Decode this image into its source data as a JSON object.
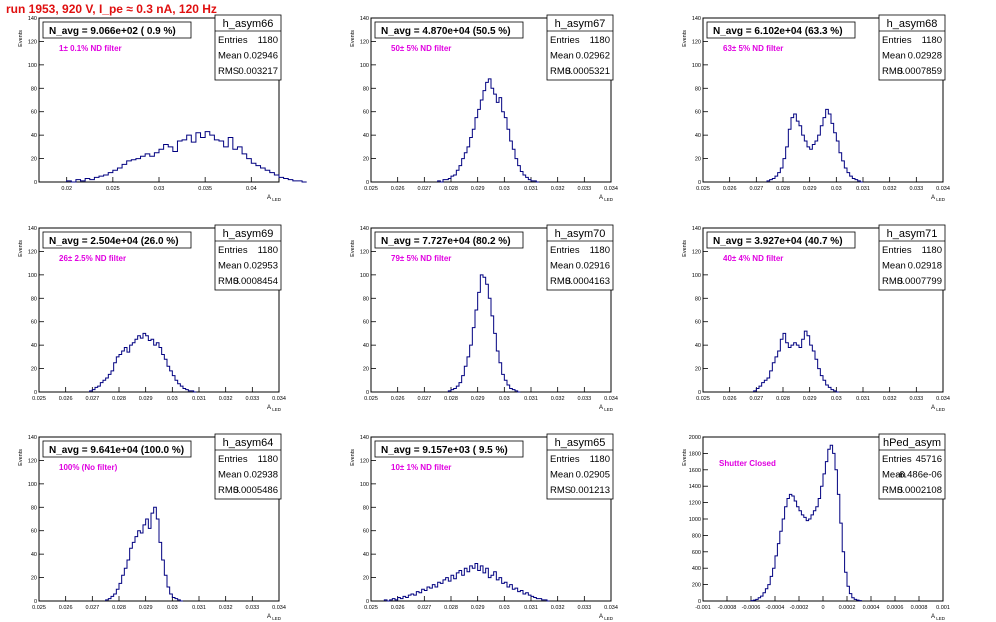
{
  "page": {
    "title": "run 1953,   920 V, I_pe ≈ 0.3 nA, 120 Hz"
  },
  "chart_data": [
    {
      "type": "histogram",
      "name": "h_asym66",
      "label": "N_avg = 9.066e+02 ( 0.9 %)",
      "filter": "1± 0.1% ND filter",
      "stats": {
        "entries": "1180",
        "mean": "0.02946",
        "rms": "0.003217"
      },
      "xlim": [
        0.017,
        0.043
      ],
      "ylim": [
        0,
        140
      ],
      "xticks": [
        0.02,
        0.025,
        0.03,
        0.035,
        0.04
      ],
      "xtick_labels": [
        "0.02",
        "0.025",
        "0.03",
        "0.035",
        "0.04"
      ],
      "yticks": [
        0,
        20,
        40,
        60,
        80,
        100,
        120,
        140
      ],
      "xlabel": "A",
      "xlabel_sub": "LED",
      "ylabel": "Events",
      "bins": {
        "x0": 0.02,
        "width": 0.0005,
        "values": [
          1,
          0,
          2,
          1,
          3,
          2,
          4,
          5,
          6,
          8,
          10,
          12,
          15,
          18,
          19,
          20,
          22,
          24,
          22,
          25,
          28,
          32,
          30,
          26,
          35,
          36,
          40,
          34,
          42,
          38,
          43,
          40,
          36,
          35,
          30,
          38,
          28,
          30,
          24,
          20,
          16,
          14,
          12,
          10,
          8,
          6,
          4,
          3,
          2,
          1,
          1,
          0
        ]
      }
    },
    {
      "type": "histogram",
      "name": "h_asym67",
      "label": "N_avg = 4.870e+04 (50.5 %)",
      "filter": "50± 5% ND filter",
      "stats": {
        "entries": "1180",
        "mean": "0.02962",
        "rms": "0.0005321"
      },
      "xlim": [
        0.025,
        0.034
      ],
      "ylim": [
        0,
        140
      ],
      "xticks": [
        0.025,
        0.026,
        0.027,
        0.028,
        0.029,
        0.03,
        0.031,
        0.032,
        0.033,
        0.034
      ],
      "xtick_labels": [
        "0.025",
        "0.026",
        "0.027",
        "0.028",
        "0.029",
        "0.03",
        "0.031",
        "0.032",
        "0.033",
        "0.034"
      ],
      "yticks": [
        0,
        20,
        40,
        60,
        80,
        100,
        120,
        140
      ],
      "xlabel": "A",
      "xlabel_sub": "LED",
      "ylabel": "Events",
      "bins": {
        "x0": 0.0275,
        "width": 0.0001,
        "values": [
          1,
          0,
          2,
          2,
          3,
          5,
          6,
          10,
          14,
          20,
          25,
          30,
          38,
          45,
          55,
          62,
          70,
          78,
          85,
          88,
          80,
          75,
          68,
          72,
          60,
          55,
          45,
          35,
          28,
          20,
          14,
          9,
          6,
          4,
          2,
          1,
          1,
          0
        ]
      }
    },
    {
      "type": "histogram",
      "name": "h_asym68",
      "label": "N_avg = 6.102e+04 (63.3 %)",
      "filter": "63± 5% ND filter",
      "stats": {
        "entries": "1180",
        "mean": "0.02928",
        "rms": "0.0007859"
      },
      "xlim": [
        0.025,
        0.034
      ],
      "ylim": [
        0,
        140
      ],
      "xticks": [
        0.025,
        0.026,
        0.027,
        0.028,
        0.029,
        0.03,
        0.031,
        0.032,
        0.033,
        0.034
      ],
      "xtick_labels": [
        "0.025",
        "0.026",
        "0.027",
        "0.028",
        "0.029",
        "0.03",
        "0.031",
        "0.032",
        "0.033",
        "0.034"
      ],
      "yticks": [
        0,
        20,
        40,
        60,
        80,
        100,
        120,
        140
      ],
      "xlabel": "A",
      "xlabel_sub": "LED",
      "ylabel": "Events",
      "bins": {
        "x0": 0.0274,
        "width": 0.0001,
        "values": [
          1,
          2,
          3,
          5,
          8,
          12,
          20,
          30,
          45,
          55,
          58,
          52,
          48,
          40,
          35,
          30,
          28,
          32,
          35,
          40,
          48,
          55,
          62,
          58,
          50,
          42,
          35,
          25,
          18,
          12,
          8,
          5,
          3,
          2,
          1,
          0
        ]
      }
    },
    {
      "type": "histogram",
      "name": "h_asym69",
      "label": "N_avg = 2.504e+04 (26.0 %)",
      "filter": "26± 2.5% ND filter",
      "stats": {
        "entries": "1180",
        "mean": "0.02953",
        "rms": "0.0008454"
      },
      "xlim": [
        0.025,
        0.034
      ],
      "ylim": [
        0,
        140
      ],
      "xticks": [
        0.025,
        0.026,
        0.027,
        0.028,
        0.029,
        0.03,
        0.031,
        0.032,
        0.033,
        0.034
      ],
      "xtick_labels": [
        "0.025",
        "0.026",
        "0.027",
        "0.028",
        "0.029",
        "0.03",
        "0.031",
        "0.032",
        "0.033",
        "0.034"
      ],
      "yticks": [
        0,
        20,
        40,
        60,
        80,
        100,
        120,
        140
      ],
      "xlabel": "A",
      "xlabel_sub": "LED",
      "ylabel": "Events",
      "bins": {
        "x0": 0.0269,
        "width": 0.0001,
        "values": [
          1,
          2,
          4,
          5,
          8,
          10,
          12,
          15,
          18,
          25,
          30,
          32,
          35,
          38,
          34,
          40,
          42,
          45,
          48,
          46,
          50,
          48,
          44,
          45,
          40,
          42,
          38,
          32,
          28,
          22,
          18,
          14,
          10,
          7,
          5,
          3,
          2,
          1,
          1,
          0
        ]
      }
    },
    {
      "type": "histogram",
      "name": "h_asym70",
      "label": "N_avg = 7.727e+04 (80.2 %)",
      "filter": "79± 5% ND filter",
      "stats": {
        "entries": "1180",
        "mean": "0.02916",
        "rms": "0.0004163"
      },
      "xlim": [
        0.025,
        0.034
      ],
      "ylim": [
        0,
        140
      ],
      "xticks": [
        0.025,
        0.026,
        0.027,
        0.028,
        0.029,
        0.03,
        0.031,
        0.032,
        0.033,
        0.034
      ],
      "xtick_labels": [
        "0.025",
        "0.026",
        "0.027",
        "0.028",
        "0.029",
        "0.03",
        "0.031",
        "0.032",
        "0.033",
        "0.034"
      ],
      "yticks": [
        0,
        20,
        40,
        60,
        80,
        100,
        120,
        140
      ],
      "xlabel": "A",
      "xlabel_sub": "LED",
      "ylabel": "Events",
      "bins": {
        "x0": 0.0279,
        "width": 0.0001,
        "values": [
          1,
          2,
          3,
          5,
          8,
          14,
          22,
          30,
          40,
          55,
          70,
          85,
          100,
          98,
          92,
          80,
          65,
          50,
          35,
          25,
          15,
          10,
          6,
          3,
          2,
          1,
          0
        ]
      }
    },
    {
      "type": "histogram",
      "name": "h_asym71",
      "label": "N_avg = 3.927e+04 (40.7 %)",
      "filter": "40± 4% ND filter",
      "stats": {
        "entries": "1180",
        "mean": "0.02918",
        "rms": "0.0007799"
      },
      "xlim": [
        0.025,
        0.034
      ],
      "ylim": [
        0,
        140
      ],
      "xticks": [
        0.025,
        0.026,
        0.027,
        0.028,
        0.029,
        0.03,
        0.031,
        0.032,
        0.033,
        0.034
      ],
      "xtick_labels": [
        "0.025",
        "0.026",
        "0.027",
        "0.028",
        "0.029",
        "0.03",
        "0.031",
        "0.032",
        "0.033",
        "0.034"
      ],
      "yticks": [
        0,
        20,
        40,
        60,
        80,
        100,
        120,
        140
      ],
      "xlabel": "A",
      "xlabel_sub": "LED",
      "ylabel": "Events",
      "bins": {
        "x0": 0.0269,
        "width": 0.0001,
        "values": [
          1,
          3,
          5,
          8,
          10,
          12,
          18,
          25,
          30,
          35,
          45,
          50,
          42,
          38,
          40,
          42,
          40,
          38,
          45,
          52,
          48,
          40,
          35,
          28,
          20,
          14,
          10,
          6,
          4,
          2,
          1,
          0
        ]
      }
    },
    {
      "type": "histogram",
      "name": "h_asym64",
      "label": "N_avg = 9.641e+04 (100.0 %)",
      "filter": "100% (No filter)",
      "stats": {
        "entries": "1180",
        "mean": "0.02938",
        "rms": "0.0005486"
      },
      "xlim": [
        0.025,
        0.034
      ],
      "ylim": [
        0,
        140
      ],
      "xticks": [
        0.025,
        0.026,
        0.027,
        0.028,
        0.029,
        0.03,
        0.031,
        0.032,
        0.033,
        0.034
      ],
      "xtick_labels": [
        "0.025",
        "0.026",
        "0.027",
        "0.028",
        "0.029",
        "0.03",
        "0.031",
        "0.032",
        "0.033",
        "0.034"
      ],
      "yticks": [
        0,
        20,
        40,
        60,
        80,
        100,
        120,
        140
      ],
      "xlabel": "A",
      "xlabel_sub": "LED",
      "ylabel": "Events",
      "bins": {
        "x0": 0.0275,
        "width": 0.0001,
        "values": [
          1,
          2,
          4,
          6,
          10,
          15,
          22,
          28,
          35,
          45,
          50,
          55,
          60,
          58,
          65,
          70,
          62,
          75,
          80,
          70,
          50,
          35,
          22,
          12,
          6,
          3,
          2,
          1,
          0
        ]
      }
    },
    {
      "type": "histogram",
      "name": "h_asym65",
      "label": "N_avg = 9.157e+03 ( 9.5 %)",
      "filter": "10± 1% ND filter",
      "stats": {
        "entries": "1180",
        "mean": "0.02905",
        "rms": "0.001213"
      },
      "xlim": [
        0.025,
        0.034
      ],
      "ylim": [
        0,
        140
      ],
      "xticks": [
        0.025,
        0.026,
        0.027,
        0.028,
        0.029,
        0.03,
        0.031,
        0.032,
        0.033,
        0.034
      ],
      "xtick_labels": [
        "0.025",
        "0.026",
        "0.027",
        "0.028",
        "0.029",
        "0.03",
        "0.031",
        "0.032",
        "0.033",
        "0.034"
      ],
      "yticks": [
        0,
        20,
        40,
        60,
        80,
        100,
        120,
        140
      ],
      "xlabel": "A",
      "xlabel_sub": "LED",
      "ylabel": "Events",
      "bins": {
        "x0": 0.0255,
        "width": 0.0001,
        "values": [
          1,
          0,
          1,
          2,
          1,
          3,
          2,
          4,
          3,
          5,
          6,
          5,
          8,
          7,
          10,
          9,
          12,
          11,
          14,
          12,
          16,
          15,
          18,
          20,
          17,
          22,
          19,
          24,
          26,
          22,
          28,
          25,
          30,
          28,
          32,
          26,
          30,
          24,
          28,
          20,
          22,
          25,
          18,
          20,
          15,
          16,
          12,
          14,
          10,
          11,
          8,
          9,
          6,
          7,
          5,
          4,
          3,
          2,
          2,
          1,
          1,
          0
        ]
      }
    },
    {
      "type": "histogram",
      "name": "hPed_asym",
      "label": "",
      "filter": "Shutter Closed",
      "stats": {
        "entries": "45716",
        "mean": "-6.486e-06",
        "rms": "0.0002108"
      },
      "xlim": [
        -0.001,
        0.001
      ],
      "ylim": [
        0,
        2000
      ],
      "xticks": [
        -0.001,
        -0.0008,
        -0.0006,
        -0.0004,
        -0.0002,
        0,
        0.0002,
        0.0004,
        0.0006,
        0.0008,
        0.001
      ],
      "xtick_labels": [
        "-0.001",
        "-0.0008",
        "-0.0006",
        "-0.0004",
        "-0.0002",
        "0",
        "0.0002",
        "0.0004",
        "0.0006",
        "0.0008",
        "0.001"
      ],
      "yticks": [
        0,
        200,
        400,
        600,
        800,
        1000,
        1200,
        1400,
        1600,
        1800,
        2000
      ],
      "xlabel": "A",
      "xlabel_sub": "LED",
      "ylabel": "Events",
      "bins": {
        "x0": -0.0006,
        "width": 2e-05,
        "values": [
          5,
          10,
          20,
          40,
          60,
          100,
          150,
          200,
          300,
          400,
          550,
          700,
          850,
          1000,
          1150,
          1250,
          1300,
          1280,
          1220,
          1150,
          1100,
          1050,
          1020,
          980,
          1000,
          1050,
          1100,
          1150,
          1250,
          1400,
          1550,
          1700,
          1850,
          1900,
          1800,
          1600,
          1300,
          950,
          600,
          350,
          180,
          90,
          40,
          20,
          10,
          5
        ]
      }
    }
  ]
}
